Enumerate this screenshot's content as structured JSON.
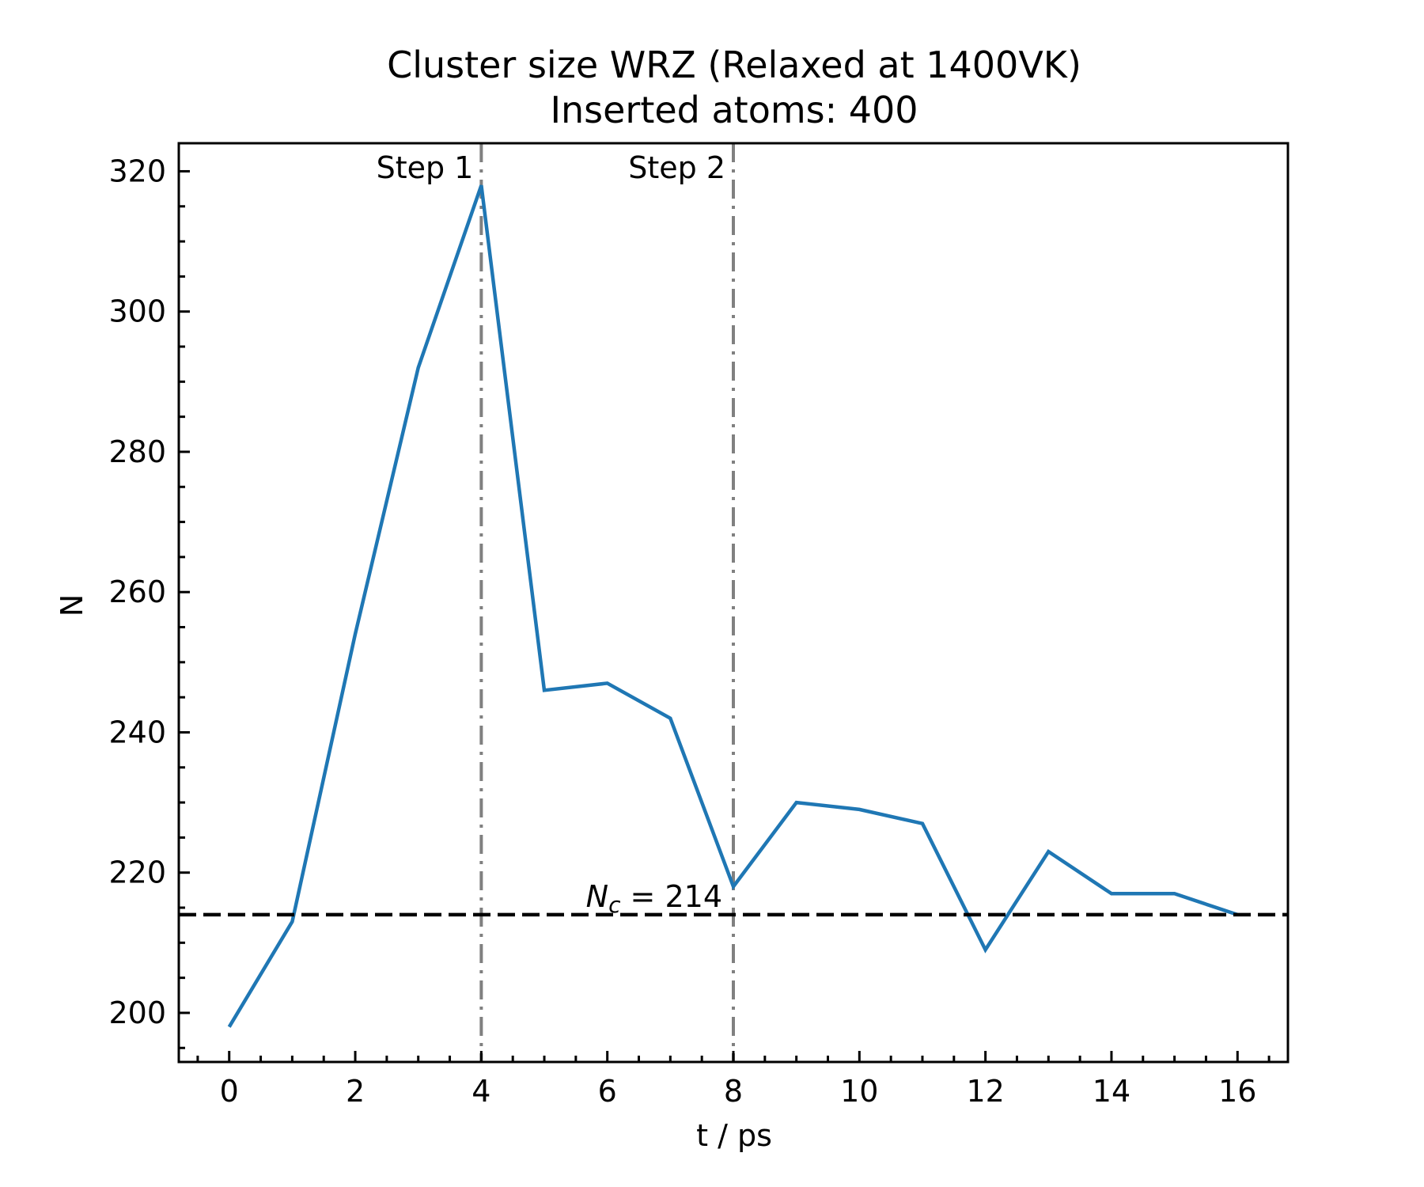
{
  "chart_data": {
    "type": "line",
    "title": "Cluster size WRZ (Relaxed at 1400VK)",
    "subtitle": "Inserted atoms: 400",
    "xlabel": "t / ps",
    "ylabel": "N",
    "xlim": [
      -0.8,
      16.8
    ],
    "ylim": [
      193,
      324
    ],
    "xticks": [
      0,
      2,
      4,
      6,
      8,
      10,
      12,
      14,
      16
    ],
    "yticks": [
      200,
      220,
      240,
      260,
      280,
      300,
      320
    ],
    "grid": false,
    "series": [
      {
        "color": "#1f77b4",
        "x": [
          0,
          1,
          2,
          3,
          4,
          5,
          6,
          7,
          8,
          9,
          10,
          11,
          12,
          13,
          14,
          15,
          16
        ],
        "y": [
          198,
          213,
          254,
          292,
          318,
          246,
          247,
          242,
          218,
          230,
          229,
          227,
          209,
          223,
          217,
          217,
          214
        ]
      }
    ],
    "hlines": [
      {
        "y": 214,
        "style": "dashed",
        "color": "#000000",
        "label_main": "N",
        "label_sub": "c",
        "label_rest": " = 214"
      }
    ],
    "vlines": [
      {
        "x": 4,
        "style": "dash-dot",
        "color": "#808080",
        "label": "Step 1"
      },
      {
        "x": 8,
        "style": "dash-dot",
        "color": "#808080",
        "label": "Step 2"
      }
    ]
  }
}
